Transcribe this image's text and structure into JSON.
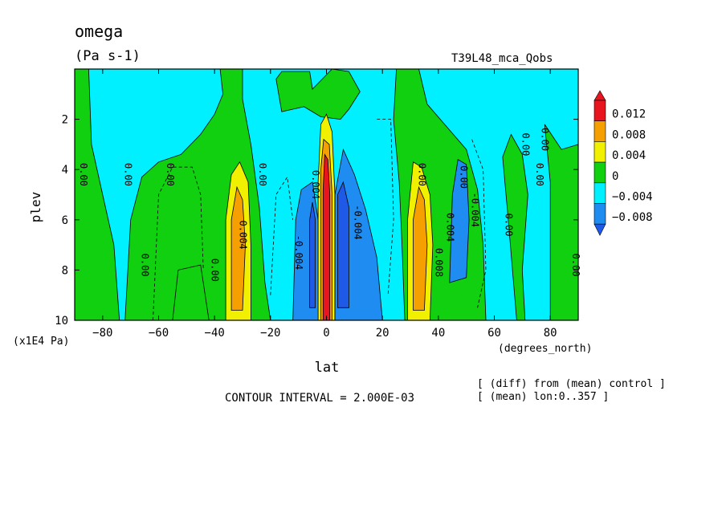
{
  "header": {
    "title": "omega",
    "units": "(Pa s-1)",
    "run": "T39L48_mca_Qobs"
  },
  "notes": {
    "line1": "[ (diff) from (mean) control ]",
    "line2": "[ (mean) lon:0..357 ]",
    "contour_interval": "CONTOUR INTERVAL = 2.000E-03"
  },
  "chart_data": {
    "type": "heatmap",
    "title": "omega",
    "units": "(Pa s-1)",
    "xlabel": "lat",
    "xunit": "(degrees_north)",
    "ylabel": "plev",
    "yunit": "(x1E4 Pa)",
    "xlim": [
      -90,
      90
    ],
    "ylim": [
      0,
      10
    ],
    "y_inverted": true,
    "x_ticks": [
      -80,
      -60,
      -40,
      -20,
      0,
      20,
      40,
      60,
      80
    ],
    "y_ticks": [
      2,
      4,
      6,
      8,
      10
    ],
    "colorbar": {
      "levels": [
        0.012,
        0.008,
        0.004,
        0,
        -0.004,
        -0.008
      ],
      "labels": [
        "0.012",
        "0.008",
        "0.004",
        "0",
        "−0.004",
        "−0.008"
      ],
      "colors": [
        "#e8141e",
        "#f5a000",
        "#f0f000",
        "#10d010",
        "#00f0ff",
        "#1e8cf0",
        "#1f5ae6"
      ]
    },
    "contour_labels": [
      {
        "x": -88,
        "y": 4.2,
        "text": "0.00"
      },
      {
        "x": -72,
        "y": 4.2,
        "text": "0.00"
      },
      {
        "x": -57,
        "y": 4.2,
        "text": "0.00"
      },
      {
        "x": -24,
        "y": 4.2,
        "text": "0.00"
      },
      {
        "x": -66,
        "y": 7.8,
        "text": "0.00"
      },
      {
        "x": -41,
        "y": 8.0,
        "text": "0.00"
      },
      {
        "x": -31,
        "y": 6.6,
        "text": "0.004"
      },
      {
        "x": -11,
        "y": 7.3,
        "text": "-0.004"
      },
      {
        "x": -5,
        "y": 4.6,
        "text": "0.004"
      },
      {
        "x": 10,
        "y": 6.1,
        "text": "-0.004"
      },
      {
        "x": 33,
        "y": 4.2,
        "text": "0.00"
      },
      {
        "x": 39,
        "y": 7.7,
        "text": "0.008"
      },
      {
        "x": 43,
        "y": 6.3,
        "text": "0.004"
      },
      {
        "x": 48,
        "y": 4.3,
        "text": "0.00"
      },
      {
        "x": 52,
        "y": 5.6,
        "text": "-0.004"
      },
      {
        "x": 64,
        "y": 6.2,
        "text": "0.00"
      },
      {
        "x": 70,
        "y": 3.0,
        "text": "0.00"
      },
      {
        "x": 77,
        "y": 2.8,
        "text": "0.00"
      },
      {
        "x": 75,
        "y": 4.2,
        "text": "0.00"
      },
      {
        "x": 88,
        "y": 7.8,
        "text": "0.00"
      }
    ],
    "features": [
      {
        "lat": -33,
        "plev_range": [
          4,
          10
        ],
        "sign": "positive",
        "peak": 0.008
      },
      {
        "lat": 33,
        "plev_range": [
          4,
          10
        ],
        "sign": "positive",
        "peak": 0.008
      },
      {
        "lat": 0,
        "plev_range": [
          2,
          10
        ],
        "sign": "positive",
        "peak": 0.012
      },
      {
        "lat": -5,
        "plev_range": [
          4,
          10
        ],
        "sign": "negative",
        "peak": -0.008
      },
      {
        "lat": 5,
        "plev_range": [
          4,
          10
        ],
        "sign": "negative",
        "peak": -0.008
      },
      {
        "lat": 48,
        "plev_range": [
          3.5,
          8.5
        ],
        "sign": "negative",
        "peak": -0.004
      }
    ]
  }
}
